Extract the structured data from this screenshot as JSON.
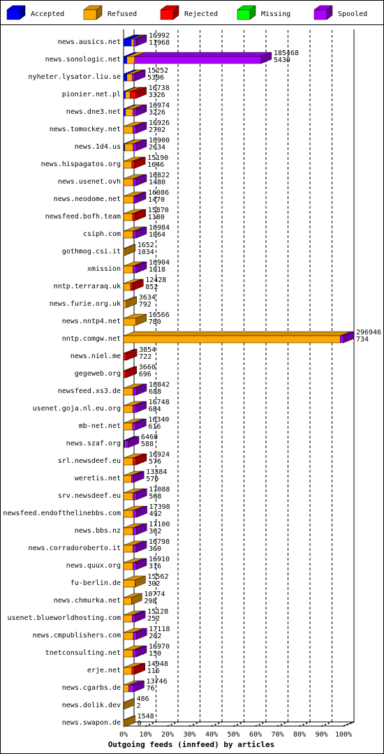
{
  "chart_data": {
    "type": "bar3d",
    "orientation": "horizontal",
    "stacked": true,
    "x_label": "Outgoing feeds (innfeed) by articles",
    "categories": [
      "news.ausics.net",
      "news.sonologic.net",
      "nyheter.lysator.liu.se",
      "pionier.net.pl",
      "news.dne3.net",
      "news.tomockey.net",
      "news.1d4.us",
      "news.hispagatos.org",
      "news.usenet.ovh",
      "news.neodome.net",
      "newsfeed.bofh.team",
      "csiph.com",
      "gothmog.csi.it",
      "xmission",
      "nntp.terraraq.uk",
      "news.furie.org.uk",
      "news.nntp4.net",
      "nntp.comgw.net",
      "news.niel.me",
      "gegeweb.org",
      "newsfeed.xs3.de",
      "usenet.goja.nl.eu.org",
      "mb-net.net",
      "news.szaf.org",
      "srl.newsdeef.eu",
      "weretis.net",
      "srv.newsdeef.eu",
      "newsfeed.endofthelinebbs.com",
      "news.bbs.nz",
      "news.corradoroberto.it",
      "news.quux.org",
      "fu-berlin.de",
      "news.chmurka.net",
      "usenet.blueworldhosting.com",
      "news.cmpublishers.com",
      "tnetconsulting.net",
      "erje.net",
      "news.cgarbs.de",
      "news.dolik.dev",
      "news.swapon.de"
    ],
    "series": [
      {
        "name": "Accepted",
        "color": "#0000ff",
        "values": [
          3.5,
          1.5,
          1.5,
          0.8,
          0.8,
          0,
          0.5,
          0,
          0,
          0,
          0,
          0,
          0,
          0,
          0,
          0,
          0,
          0,
          0,
          0,
          0,
          0,
          0,
          0.5,
          0,
          0,
          0,
          0,
          0,
          0,
          0,
          0,
          0,
          0,
          0,
          0,
          0,
          0,
          0,
          0
        ]
      },
      {
        "name": "Refused",
        "color": "#ffaa00",
        "values": [
          1.2,
          3.5,
          2.5,
          2.2,
          3.5,
          4.3,
          3.8,
          3.8,
          4.4,
          4.6,
          4.1,
          4.3,
          0.56,
          4.3,
          3.2,
          1.2,
          5.6,
          98.5,
          0,
          0,
          4.3,
          4.2,
          4.1,
          0.5,
          4.3,
          3.6,
          4.3,
          4.4,
          4.3,
          4.3,
          4.3,
          5.2,
          3.6,
          3.9,
          4.4,
          4.3,
          3.8,
          2.4,
          0.16,
          0.5
        ]
      },
      {
        "name": "Rejected",
        "color": "#ff0000",
        "values": [
          0,
          0,
          0,
          2.6,
          0,
          0,
          0,
          1.3,
          0,
          0,
          1.2,
          0,
          0,
          0,
          1.0,
          0,
          0,
          0,
          1.3,
          1.2,
          0,
          0,
          0,
          0,
          1.4,
          0,
          0,
          0,
          0,
          0,
          0,
          0,
          0,
          0,
          0,
          0,
          1.2,
          0,
          0,
          0
        ]
      },
      {
        "name": "Missing",
        "color": "#00ff00",
        "values": [
          0,
          0,
          0,
          0,
          0,
          0,
          0,
          0,
          0,
          0,
          0,
          0,
          0,
          0,
          0,
          0,
          0,
          0,
          0,
          0,
          0,
          0,
          0,
          0,
          0,
          0,
          0,
          0,
          0,
          0,
          0,
          0,
          0,
          0,
          0,
          0,
          0,
          0,
          0,
          0
        ]
      },
      {
        "name": "Spooled",
        "color": "#aa00ff",
        "values": [
          1.0,
          57.5,
          1.1,
          0,
          1.4,
          1.4,
          1.4,
          0,
          1.3,
          0.8,
          0,
          1.4,
          0,
          1.4,
          0,
          0,
          0,
          1.5,
          0,
          0,
          1.4,
          1.4,
          1.4,
          1.2,
          0,
          0.9,
          1.5,
          1.5,
          1.5,
          1.4,
          1.4,
          0,
          0,
          1.2,
          1.4,
          1.4,
          0,
          2.2,
          0,
          0
        ]
      }
    ],
    "row_labels": [
      [
        16992,
        11968
      ],
      [
        185468,
        5430
      ],
      [
        15252,
        5396
      ],
      [
        16738,
        3326
      ],
      [
        16974,
        3226
      ],
      [
        16926,
        2702
      ],
      [
        16900,
        2634
      ],
      [
        15190,
        1646
      ],
      [
        16822,
        1480
      ],
      [
        16086,
        1470
      ],
      [
        15870,
        1180
      ],
      [
        16984,
        1064
      ],
      [
        1652,
        1034
      ],
      [
        16904,
        1018
      ],
      [
        12428,
        852
      ],
      [
        3634,
        792
      ],
      [
        16566,
        780
      ],
      [
        296946,
        734
      ],
      [
        3854,
        722
      ],
      [
        3660,
        696
      ],
      [
        16842,
        688
      ],
      [
        16748,
        684
      ],
      [
        16340,
        616
      ],
      [
        6460,
        588
      ],
      [
        16924,
        576
      ],
      [
        13384,
        570
      ],
      [
        17088,
        568
      ],
      [
        17398,
        492
      ],
      [
        17100,
        362
      ],
      [
        16798,
        360
      ],
      [
        16910,
        316
      ],
      [
        15562,
        302
      ],
      [
        10774,
        298
      ],
      [
        15128,
        252
      ],
      [
        17118,
        202
      ],
      [
        16970,
        150
      ],
      [
        14948,
        116
      ],
      [
        13746,
        76
      ],
      [
        486,
        2
      ],
      [
        1548,
        0
      ]
    ],
    "xlim": [
      0,
      100
    ],
    "xticks": [
      {
        "value": 0,
        "label": "0%"
      },
      {
        "value": 10,
        "label": "10%"
      },
      {
        "value": 20,
        "label": "20%"
      },
      {
        "value": 30,
        "label": "30%"
      },
      {
        "value": 40,
        "label": "40%"
      },
      {
        "value": 50,
        "label": "50%"
      },
      {
        "value": 60,
        "label": "60%"
      },
      {
        "value": 70,
        "label": "70%"
      },
      {
        "value": 80,
        "label": "80%"
      },
      {
        "value": 90,
        "label": "90%"
      },
      {
        "value": 100,
        "label": "100%"
      }
    ],
    "grid": true,
    "legend": "top"
  }
}
